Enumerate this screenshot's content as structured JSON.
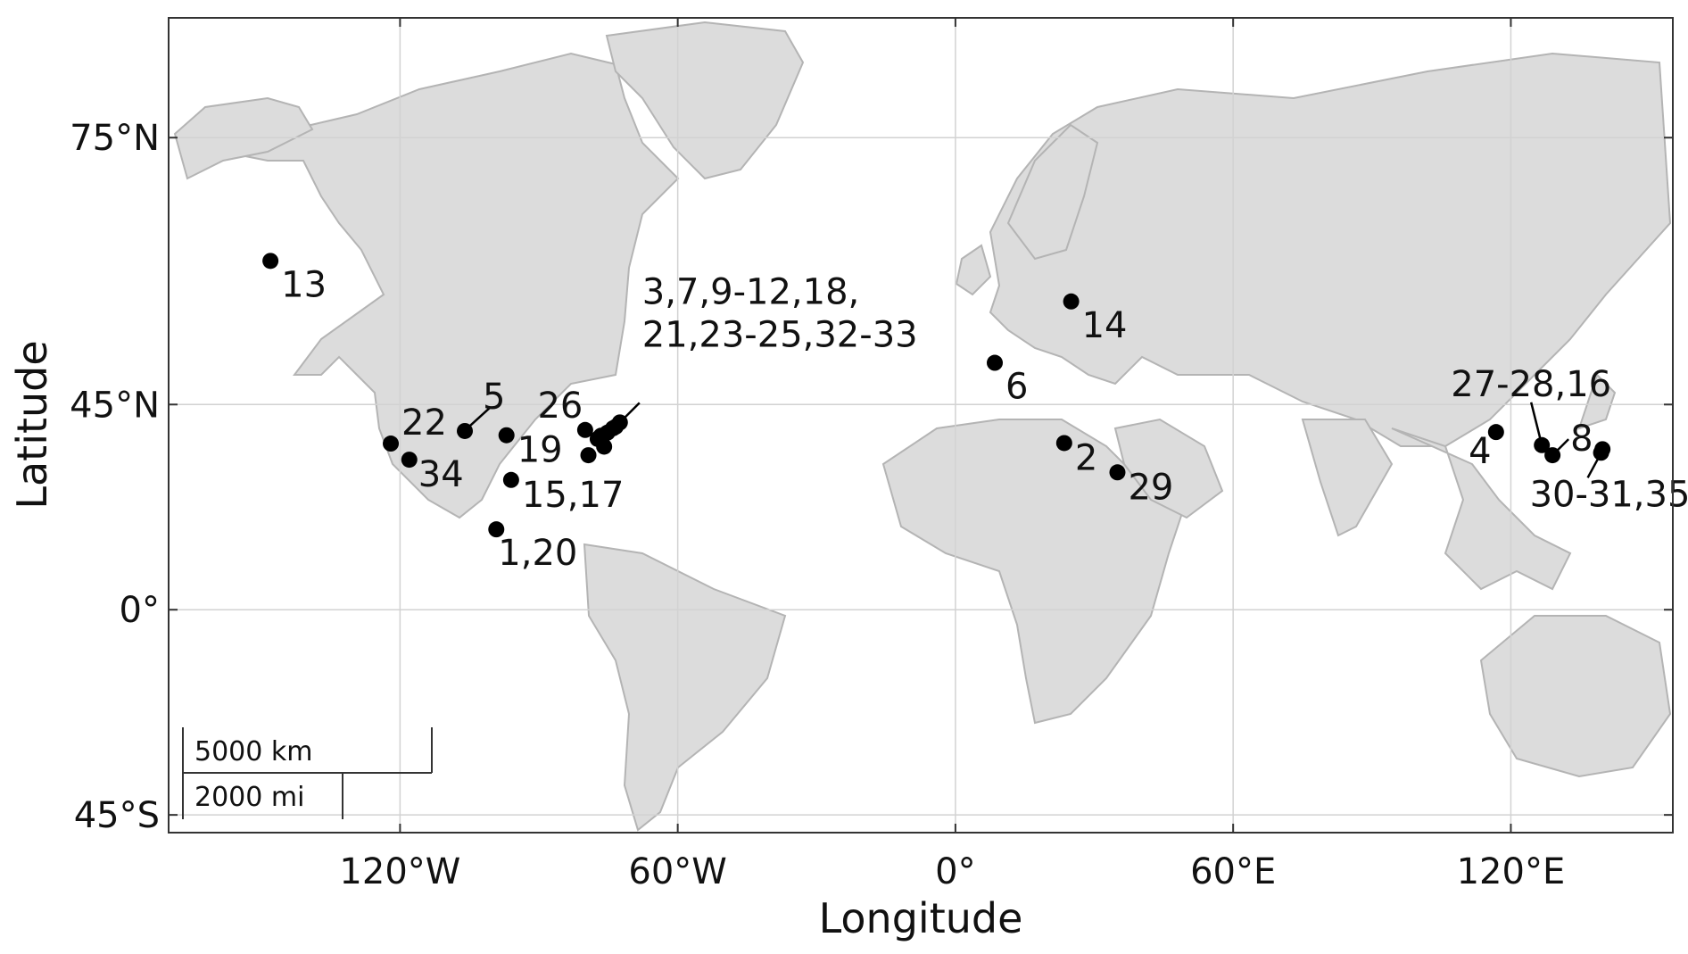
{
  "axes": {
    "xlabel": "Longitude",
    "ylabel": "Latitude",
    "lon_range_deg": [
      -170,
      155
    ],
    "lat_range_deg": [
      -48,
      81
    ],
    "projection": "mercator",
    "grid": true,
    "x_ticks": [
      {
        "lon": -120,
        "label": "120°W"
      },
      {
        "lon": -60,
        "label": "60°W"
      },
      {
        "lon": 0,
        "label": "0°"
      },
      {
        "lon": 60,
        "label": "60°E"
      },
      {
        "lon": 120,
        "label": "120°E"
      }
    ],
    "y_ticks": [
      {
        "lat": 75,
        "label": "75°N"
      },
      {
        "lat": 45,
        "label": "45°N"
      },
      {
        "lat": 0,
        "label": "0°"
      },
      {
        "lat": -45,
        "label": "45°S"
      }
    ]
  },
  "scale_bar": {
    "metric_label": "5000 km",
    "imperial_label": "2000 mi"
  },
  "colors": {
    "land": "#dcdcdc",
    "border": "#b4b4b4",
    "marker": "#000000",
    "frame": "#333333"
  },
  "sites": [
    {
      "label": "13",
      "lon": -148,
      "lat": 64.8
    },
    {
      "label": "14",
      "lon": 25,
      "lat": 60.2
    },
    {
      "label": "6",
      "lon": 8.5,
      "lat": 51.8
    },
    {
      "label": "2",
      "lon": 23.5,
      "lat": 37.9
    },
    {
      "label": "29",
      "lon": 35,
      "lat": 32
    },
    {
      "label": "5",
      "lon": -106,
      "lat": 40.2
    },
    {
      "label": "19",
      "lon": -97,
      "lat": 39.4
    },
    {
      "label": "22",
      "lon": -122,
      "lat": 37.8
    },
    {
      "label": "34",
      "lon": -118,
      "lat": 34.6
    },
    {
      "label": "15,17",
      "lon": -96,
      "lat": 30.4
    },
    {
      "label": "1,20",
      "lon": -99.2,
      "lat": 19.4
    },
    {
      "label": "26",
      "lon": -80,
      "lat": 40.4
    },
    {
      "label": "3,7,9-12,18,\n21,23-25,32-33",
      "lon": -72.5,
      "lat": 41.8
    },
    {
      "label": "4",
      "lon": 116.8,
      "lat": 40
    },
    {
      "label": "27-28,16",
      "lon": 126.7,
      "lat": 37.5
    },
    {
      "label": "8",
      "lon": 129,
      "lat": 35.5
    },
    {
      "label": "30-31,35",
      "lon": 139.5,
      "lat": 36
    }
  ],
  "extra_points": [
    {
      "lon": -79.3,
      "lat": 35.5
    },
    {
      "lon": -77.3,
      "lat": 38.7
    },
    {
      "lon": -76.6,
      "lat": 39.3
    },
    {
      "lon": -75.9,
      "lat": 37.2
    },
    {
      "lon": -75.2,
      "lat": 39.9
    },
    {
      "lon": -74,
      "lat": 40.7
    },
    {
      "lon": -73.4,
      "lat": 41
    },
    {
      "lon": 139.8,
      "lat": 36.7
    }
  ]
}
